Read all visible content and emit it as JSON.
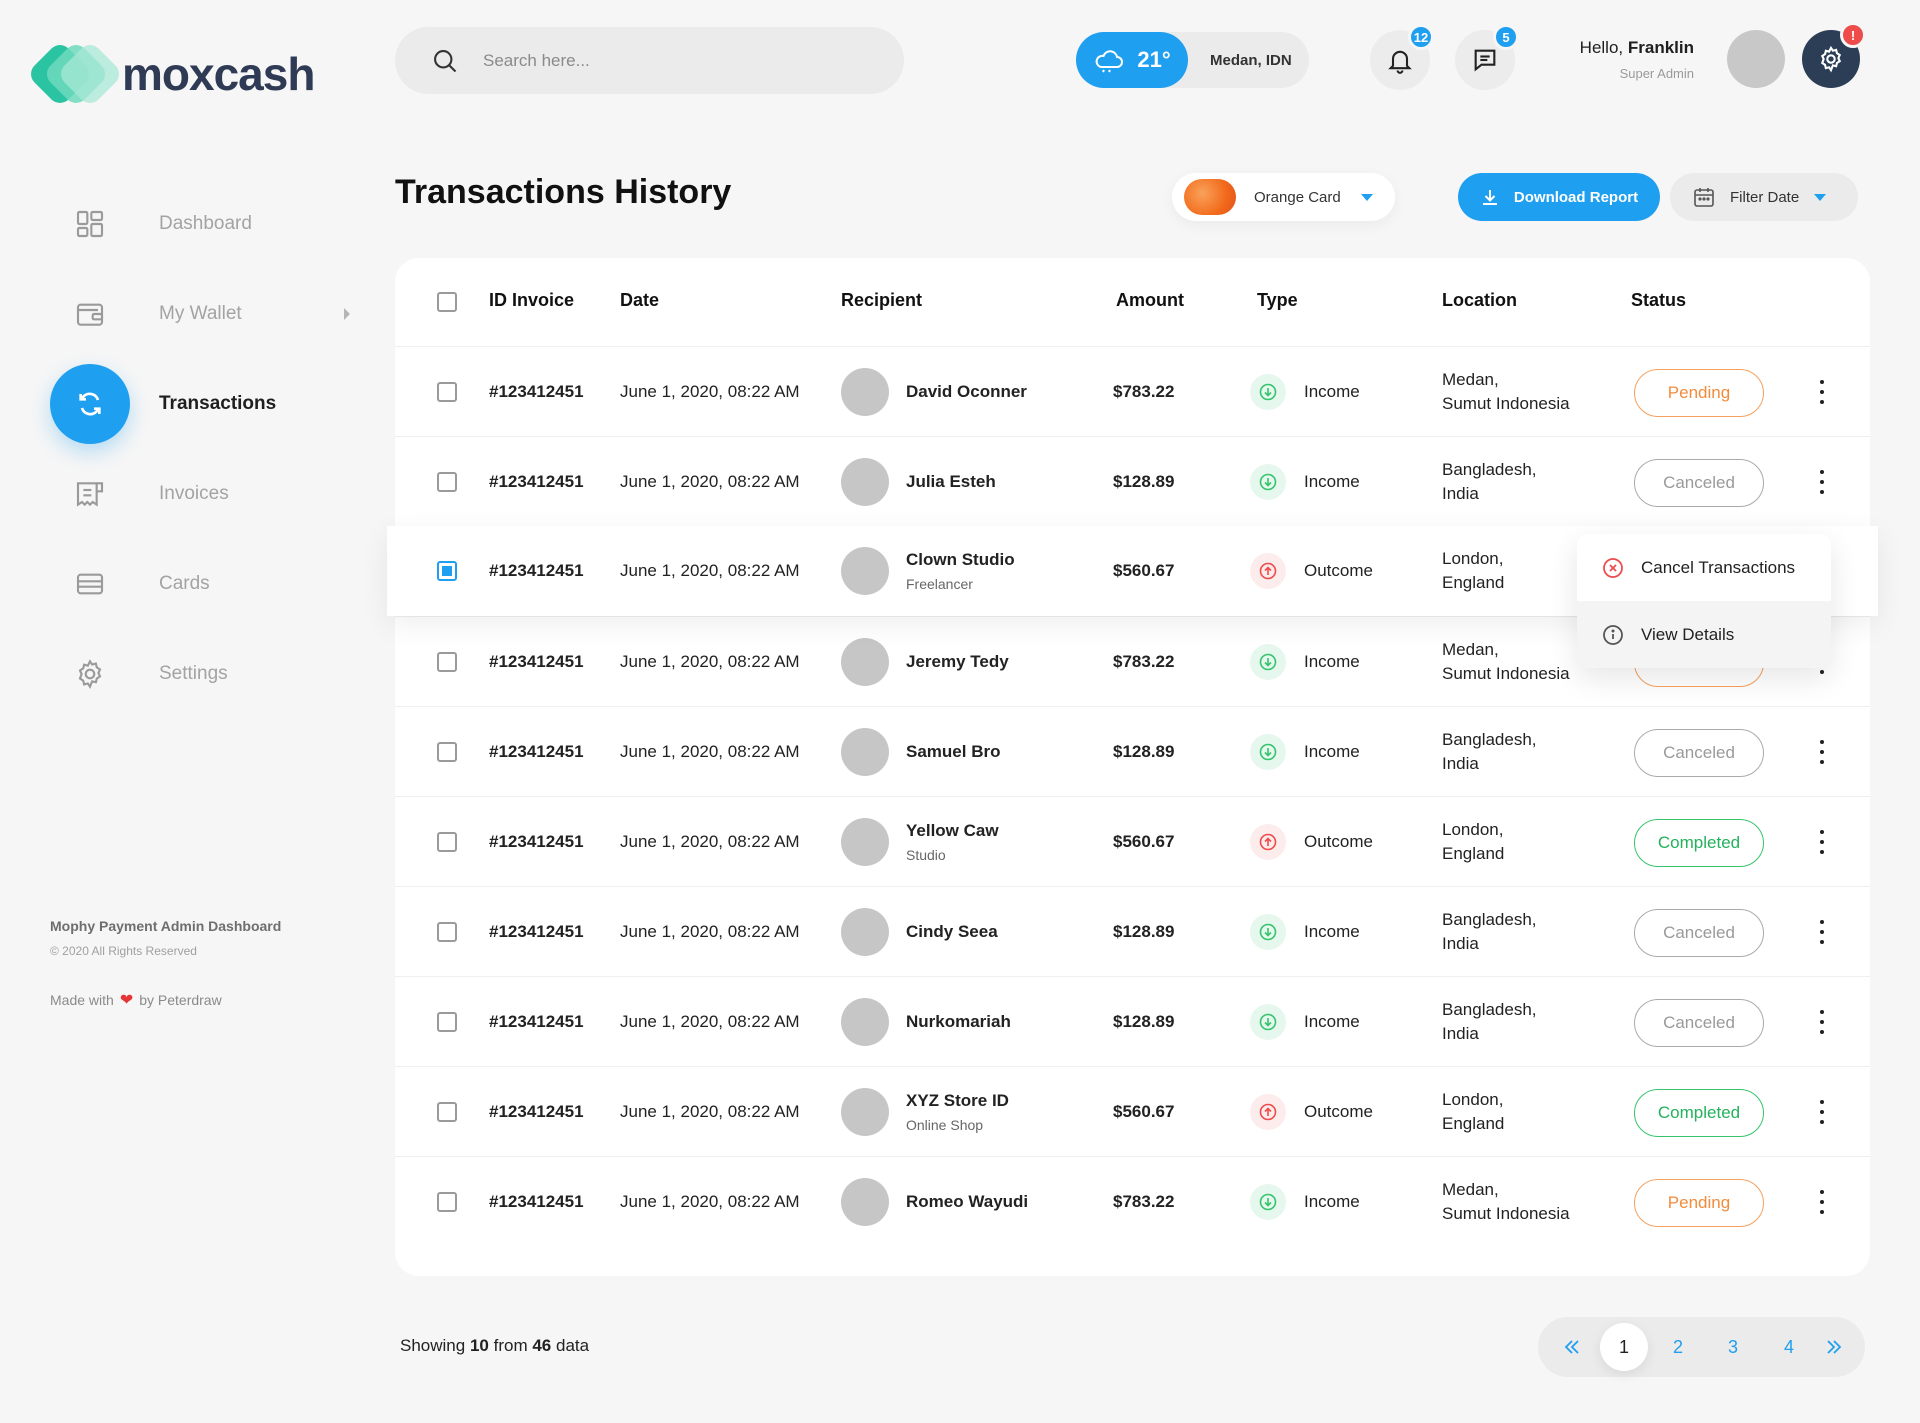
{
  "brand": {
    "name": "moxcash"
  },
  "search": {
    "placeholder": "Search here..."
  },
  "weather": {
    "temp": "21°",
    "location": "Medan, IDN"
  },
  "notifications": {
    "count": "12"
  },
  "messages": {
    "count": "5"
  },
  "settings_badge": "!",
  "user": {
    "greeting": "Hello,",
    "name": "Franklin",
    "role": "Super Admin"
  },
  "sidebar": {
    "items": [
      {
        "label": "Dashboard",
        "icon": "dashboard-icon"
      },
      {
        "label": "My Wallet",
        "icon": "wallet-icon"
      },
      {
        "label": "Transactions",
        "icon": "transactions-icon"
      },
      {
        "label": "Invoices",
        "icon": "invoices-icon"
      },
      {
        "label": "Cards",
        "icon": "cards-icon"
      },
      {
        "label": "Settings",
        "icon": "settings-icon"
      }
    ],
    "footer": {
      "title": "Mophy Payment Admin Dashboard",
      "copyright": "© 2020 All Rights Reserved",
      "made_with": "Made with",
      "by": "by Peterdraw"
    }
  },
  "page": {
    "title": "Transactions History"
  },
  "toolbar": {
    "card_label": "Orange Card",
    "download_label": "Download Report",
    "filter_label": "Filter Date"
  },
  "table": {
    "headers": {
      "invoice": "ID Invoice",
      "date": "Date",
      "recipient": "Recipient",
      "amount": "Amount",
      "type": "Type",
      "location": "Location",
      "status": "Status"
    },
    "rows": [
      {
        "invoice": "#123412451",
        "date": "June 1, 2020, 08:22 AM",
        "name": "David Oconner",
        "sub": "",
        "amount": "$783.22",
        "type": "Income",
        "loc1": "Medan,",
        "loc2": "Sumut Indonesia",
        "status": "Pending"
      },
      {
        "invoice": "#123412451",
        "date": "June 1, 2020, 08:22 AM",
        "name": "Julia Esteh",
        "sub": "",
        "amount": "$128.89",
        "type": "Income",
        "loc1": "Bangladesh,",
        "loc2": "India",
        "status": "Canceled"
      },
      {
        "invoice": "#123412451",
        "date": "June 1, 2020, 08:22 AM",
        "name": "Clown Studio",
        "sub": "Freelancer",
        "amount": "$560.67",
        "type": "Outcome",
        "loc1": "London,",
        "loc2": "England",
        "status": ""
      },
      {
        "invoice": "#123412451",
        "date": "June 1, 2020, 08:22 AM",
        "name": "Jeremy Tedy",
        "sub": "",
        "amount": "$783.22",
        "type": "Income",
        "loc1": "Medan,",
        "loc2": "Sumut Indonesia",
        "status": ""
      },
      {
        "invoice": "#123412451",
        "date": "June 1, 2020, 08:22 AM",
        "name": "Samuel Bro",
        "sub": "",
        "amount": "$128.89",
        "type": "Income",
        "loc1": "Bangladesh,",
        "loc2": "India",
        "status": "Canceled"
      },
      {
        "invoice": "#123412451",
        "date": "June 1, 2020, 08:22 AM",
        "name": "Yellow Caw",
        "sub": "Studio",
        "amount": "$560.67",
        "type": "Outcome",
        "loc1": "London,",
        "loc2": "England",
        "status": "Completed"
      },
      {
        "invoice": "#123412451",
        "date": "June 1, 2020, 08:22 AM",
        "name": "Cindy Seea",
        "sub": "",
        "amount": "$128.89",
        "type": "Income",
        "loc1": "Bangladesh,",
        "loc2": "India",
        "status": "Canceled"
      },
      {
        "invoice": "#123412451",
        "date": "June 1, 2020, 08:22 AM",
        "name": "Nurkomariah",
        "sub": "",
        "amount": "$128.89",
        "type": "Income",
        "loc1": "Bangladesh,",
        "loc2": "India",
        "status": "Canceled"
      },
      {
        "invoice": "#123412451",
        "date": "June 1, 2020, 08:22 AM",
        "name": "XYZ Store ID",
        "sub": "Online Shop",
        "amount": "$560.67",
        "type": "Outcome",
        "loc1": "London,",
        "loc2": "England",
        "status": "Completed"
      },
      {
        "invoice": "#123412451",
        "date": "June 1, 2020, 08:22 AM",
        "name": "Romeo Wayudi",
        "sub": "",
        "amount": "$783.22",
        "type": "Income",
        "loc1": "Medan,",
        "loc2": "Sumut Indonesia",
        "status": "Pending"
      }
    ]
  },
  "row_menu": {
    "cancel": "Cancel Transactions",
    "details": "View Details"
  },
  "footer": {
    "showing_prefix": "Showing",
    "shown": "10",
    "from": "from",
    "total": "46",
    "suffix": "data"
  },
  "pagination": {
    "pages": [
      "1",
      "2",
      "3",
      "4"
    ]
  },
  "colors": {
    "accent": "#1f9ff0",
    "pending": "#f28c3c",
    "completed": "#24b15c",
    "canceled": "#9a9a9a",
    "income": "#35c46c",
    "outcome": "#ee4b4b"
  }
}
